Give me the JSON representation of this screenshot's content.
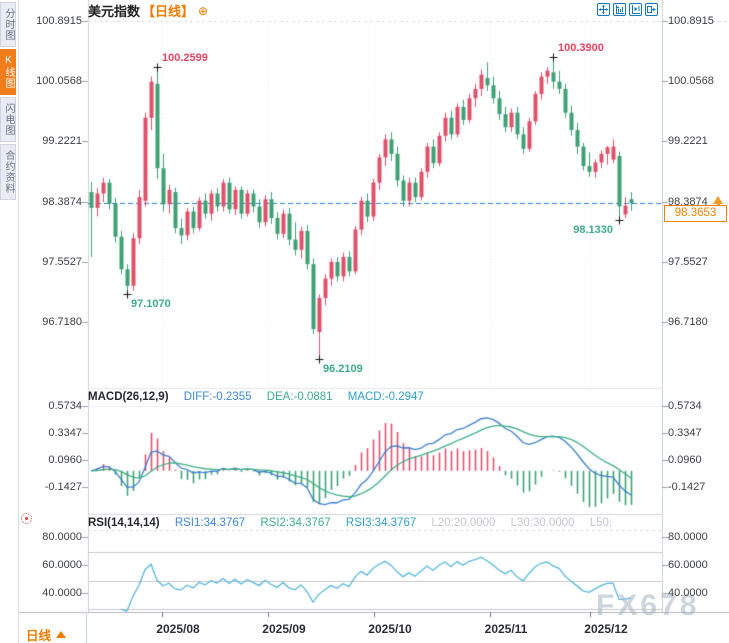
{
  "sidebar": {
    "tabs": [
      {
        "label": "分时图",
        "active": false
      },
      {
        "label": "K线图",
        "active": true
      },
      {
        "label": "闪电图",
        "active": false
      },
      {
        "label": "合约资料",
        "active": false
      }
    ]
  },
  "header": {
    "title": "美元指数",
    "period_tag": "【日线】",
    "add_indicator_glyph": "⊕"
  },
  "toolbar": {
    "icons": [
      "pan-icon",
      "axis-scale-left-icon",
      "axis-scale-right-icon",
      "shift-right-icon"
    ]
  },
  "macd_header": {
    "name": "MACD(26,12,9)",
    "diff": "DIFF:-0.2355",
    "dea": "DEA:-0.0881",
    "macd": "MACD:-0.2947"
  },
  "rsi_header": {
    "name": "RSI(14,14,14)",
    "rsi1": "RSI1:34.3767",
    "rsi2": "RSI2:34.3767",
    "rsi3": "RSI3:34.3767",
    "l20": "L20:20.0000",
    "l30": "L30:30.0000",
    "l50": "L50:"
  },
  "bottom": {
    "period_label": "日线"
  },
  "watermark": "FX678",
  "current_price": {
    "value": 98.3653,
    "label": "98.3653"
  },
  "colors": {
    "up": "#e0506b",
    "down": "#3fa076",
    "diff_line": "#3d7fd0",
    "dea_line": "#3fae86",
    "rsi_line": "#58b7dd",
    "current_line": "#2b82d8",
    "accent_orange": "#ef7c00",
    "annotation_high": "#e8455f",
    "annotation_low": "#3eac87"
  },
  "chart_data": {
    "type": "candlestick",
    "title": "美元指数 日线",
    "price_axis": {
      "values": [
        100.8915,
        100.0568,
        99.2221,
        98.3874,
        97.5527,
        96.718
      ]
    },
    "macd_axis": {
      "values": [
        0.5734,
        0.3347,
        0.096,
        -0.1427
      ]
    },
    "rsi_axis": {
      "values": [
        80.0,
        60.0,
        40.0
      ]
    },
    "rsi_levels": {
      "l20": 20.0,
      "l30": 30.0,
      "l50": 50.0
    },
    "months": [
      {
        "label": "2025/08",
        "index": 11.8
      },
      {
        "label": "2025/09",
        "index": 29.5
      },
      {
        "label": "2025/10",
        "index": 47.2
      },
      {
        "label": "2025/11",
        "index": 66.5
      },
      {
        "label": "2025/12",
        "index": 83.2
      }
    ],
    "annotations": [
      {
        "text": "100.2599",
        "index": 11,
        "price": 100.2599,
        "kind": "high",
        "placement": "right-above"
      },
      {
        "text": "100.3900",
        "index": 77,
        "price": 100.39,
        "kind": "high",
        "placement": "right-above"
      },
      {
        "text": "97.1070",
        "index": 6,
        "price": 97.107,
        "kind": "low",
        "placement": "below-right"
      },
      {
        "text": "96.2109",
        "index": 38,
        "price": 96.2109,
        "kind": "low",
        "placement": "below-right"
      },
      {
        "text": "98.1330",
        "index": 88,
        "price": 98.133,
        "kind": "low",
        "placement": "below-left"
      }
    ],
    "last_price": 98.3653,
    "indicators": {
      "macd_params": [
        26,
        12,
        9
      ],
      "macd_values": {
        "diff": -0.2355,
        "dea": -0.0881,
        "macd": -0.2947
      },
      "rsi_params": [
        14,
        14,
        14
      ],
      "rsi_values": {
        "rsi1": 34.3767,
        "rsi2": 34.3767,
        "rsi3": 34.3767
      }
    },
    "ohlc": [
      [
        98.52,
        98.66,
        97.62,
        98.3
      ],
      [
        98.3,
        98.58,
        98.18,
        98.5
      ],
      [
        98.5,
        98.72,
        98.38,
        98.65
      ],
      [
        98.65,
        98.7,
        98.28,
        98.36
      ],
      [
        98.36,
        98.44,
        97.82,
        97.9
      ],
      [
        97.9,
        97.98,
        97.38,
        97.45
      ],
      [
        97.45,
        97.52,
        97.107,
        97.22
      ],
      [
        97.22,
        97.95,
        97.15,
        97.88
      ],
      [
        97.88,
        98.55,
        97.8,
        98.45
      ],
      [
        98.4,
        99.62,
        98.32,
        99.55
      ],
      [
        99.55,
        100.12,
        99.38,
        100.05
      ],
      [
        100.02,
        100.2599,
        98.7,
        98.85
      ],
      [
        98.85,
        99.05,
        98.25,
        98.35
      ],
      [
        98.35,
        98.62,
        98.22,
        98.55
      ],
      [
        98.52,
        98.58,
        97.95,
        98.02
      ],
      [
        98.02,
        98.15,
        97.8,
        97.92
      ],
      [
        97.92,
        98.3,
        97.85,
        98.25
      ],
      [
        98.25,
        98.32,
        97.95,
        98.02
      ],
      [
        98.02,
        98.45,
        97.98,
        98.4
      ],
      [
        98.4,
        98.5,
        98.15,
        98.22
      ],
      [
        98.22,
        98.55,
        98.12,
        98.5
      ],
      [
        98.5,
        98.58,
        98.25,
        98.32
      ],
      [
        98.32,
        98.7,
        98.25,
        98.65
      ],
      [
        98.65,
        98.72,
        98.22,
        98.28
      ],
      [
        98.28,
        98.6,
        98.2,
        98.55
      ],
      [
        98.55,
        98.6,
        98.15,
        98.22
      ],
      [
        98.22,
        98.55,
        98.18,
        98.5
      ],
      [
        98.5,
        98.56,
        98.24,
        98.32
      ],
      [
        98.32,
        98.42,
        98.02,
        98.1
      ],
      [
        98.1,
        98.48,
        98.04,
        98.42
      ],
      [
        98.42,
        98.52,
        98.08,
        98.16
      ],
      [
        98.16,
        98.24,
        97.86,
        97.94
      ],
      [
        97.94,
        98.28,
        97.88,
        98.22
      ],
      [
        98.22,
        98.3,
        97.78,
        97.86
      ],
      [
        97.86,
        98.1,
        97.64,
        97.72
      ],
      [
        97.72,
        98.04,
        97.6,
        97.98
      ],
      [
        97.98,
        98.06,
        97.44,
        97.52
      ],
      [
        97.52,
        97.6,
        96.55,
        96.62
      ],
      [
        96.58,
        97.1,
        96.2109,
        97.05
      ],
      [
        97.05,
        97.38,
        96.95,
        97.32
      ],
      [
        97.32,
        97.6,
        97.22,
        97.55
      ],
      [
        97.55,
        97.62,
        97.28,
        97.35
      ],
      [
        97.35,
        97.68,
        97.28,
        97.62
      ],
      [
        97.62,
        97.7,
        97.35,
        97.42
      ],
      [
        97.42,
        98.05,
        97.38,
        98.0
      ],
      [
        98.0,
        98.45,
        97.92,
        98.4
      ],
      [
        98.4,
        98.5,
        98.1,
        98.18
      ],
      [
        98.18,
        98.7,
        98.12,
        98.65
      ],
      [
        98.65,
        99.05,
        98.55,
        99.0
      ],
      [
        99.0,
        99.32,
        98.88,
        99.25
      ],
      [
        99.25,
        99.35,
        98.95,
        99.05
      ],
      [
        99.05,
        99.15,
        98.6,
        98.68
      ],
      [
        98.68,
        98.75,
        98.32,
        98.4
      ],
      [
        98.4,
        98.72,
        98.32,
        98.65
      ],
      [
        98.65,
        98.72,
        98.38,
        98.45
      ],
      [
        98.45,
        98.85,
        98.4,
        98.8
      ],
      [
        98.8,
        99.2,
        98.72,
        99.15
      ],
      [
        99.15,
        99.25,
        98.85,
        98.92
      ],
      [
        98.92,
        99.35,
        98.88,
        99.3
      ],
      [
        99.3,
        99.62,
        99.22,
        99.55
      ],
      [
        99.55,
        99.65,
        99.25,
        99.32
      ],
      [
        99.32,
        99.75,
        99.28,
        99.7
      ],
      [
        99.7,
        99.8,
        99.45,
        99.52
      ],
      [
        99.52,
        99.88,
        99.48,
        99.82
      ],
      [
        99.82,
        100.02,
        99.7,
        99.95
      ],
      [
        99.95,
        100.22,
        99.85,
        100.15
      ],
      [
        100.1,
        100.32,
        99.92,
        100.0
      ],
      [
        100.0,
        100.12,
        99.75,
        99.82
      ],
      [
        99.82,
        99.92,
        99.52,
        99.6
      ],
      [
        99.6,
        99.7,
        99.35,
        99.42
      ],
      [
        99.42,
        99.68,
        99.35,
        99.62
      ],
      [
        99.62,
        99.7,
        99.25,
        99.32
      ],
      [
        99.32,
        99.42,
        99.05,
        99.12
      ],
      [
        99.12,
        99.55,
        99.08,
        99.5
      ],
      [
        99.5,
        99.92,
        99.45,
        99.88
      ],
      [
        99.88,
        100.18,
        99.8,
        100.12
      ],
      [
        100.12,
        100.25,
        100.02,
        100.2
      ],
      [
        100.18,
        100.39,
        99.95,
        100.05
      ],
      [
        100.05,
        100.2,
        99.88,
        99.95
      ],
      [
        99.95,
        100.02,
        99.55,
        99.62
      ],
      [
        99.62,
        99.72,
        99.3,
        99.38
      ],
      [
        99.38,
        99.48,
        99.05,
        99.15
      ],
      [
        99.15,
        99.2,
        98.82,
        98.88
      ],
      [
        98.88,
        99.07,
        98.73,
        98.8
      ],
      [
        98.8,
        98.97,
        98.72,
        98.93
      ],
      [
        98.93,
        99.1,
        98.85,
        99.05
      ],
      [
        99.05,
        99.16,
        98.9,
        99.14
      ],
      [
        98.97,
        99.25,
        98.92,
        99.15
      ],
      [
        99.02,
        99.08,
        98.133,
        98.32
      ],
      [
        98.21,
        98.45,
        98.16,
        98.33
      ],
      [
        98.42,
        98.52,
        98.26,
        98.3653
      ]
    ]
  }
}
